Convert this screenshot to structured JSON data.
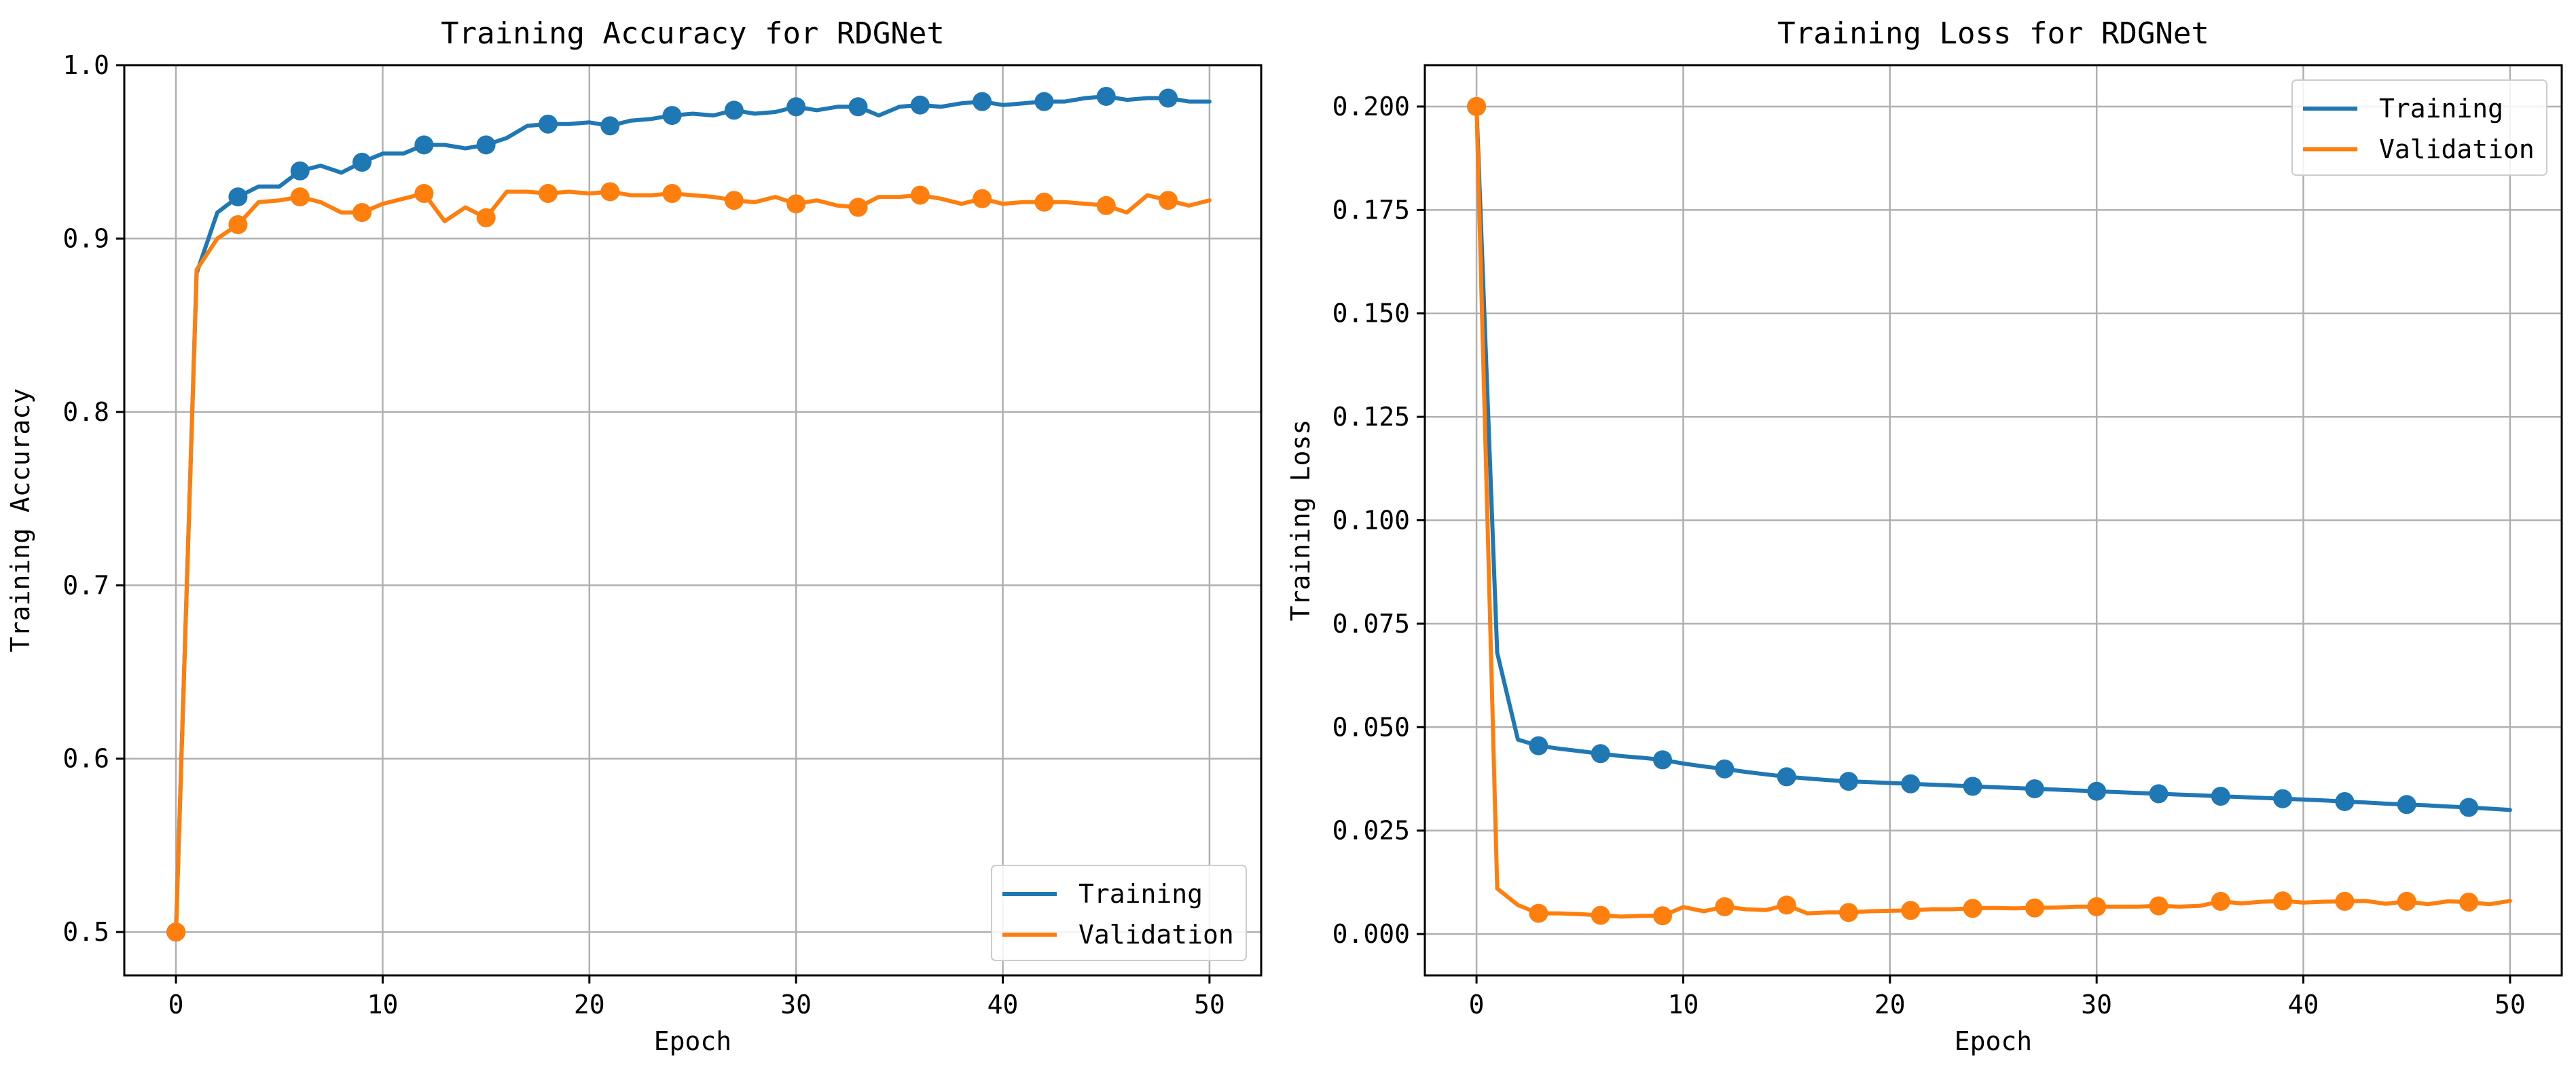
{
  "chart_data": [
    {
      "type": "line",
      "title": "Training Accuracy for RDGNet",
      "xlabel": "Epoch",
      "ylabel": "Training Accuracy",
      "xlim": [
        -2.5,
        52.5
      ],
      "ylim": [
        0.475,
        1.0
      ],
      "xticks": [
        0,
        10,
        20,
        30,
        40,
        50
      ],
      "xtick_labels": [
        "0",
        "10",
        "20",
        "30",
        "40",
        "50"
      ],
      "yticks": [
        0.5,
        0.6,
        0.7,
        0.8,
        0.9,
        1.0
      ],
      "ytick_labels": [
        "0.5",
        "0.6",
        "0.7",
        "0.8",
        "0.9",
        "1.0"
      ],
      "grid": true,
      "legend_position": "lower-right",
      "markevery": 3,
      "x": [
        0,
        1,
        2,
        3,
        4,
        5,
        6,
        7,
        8,
        9,
        10,
        11,
        12,
        13,
        14,
        15,
        16,
        17,
        18,
        19,
        20,
        21,
        22,
        23,
        24,
        25,
        26,
        27,
        28,
        29,
        30,
        31,
        32,
        33,
        34,
        35,
        36,
        37,
        38,
        39,
        40,
        41,
        42,
        43,
        44,
        45,
        46,
        47,
        48,
        49,
        50
      ],
      "series": [
        {
          "name": "Training",
          "color": "#1f77b4",
          "values": [
            0.5,
            0.88,
            0.915,
            0.924,
            0.93,
            0.93,
            0.939,
            0.942,
            0.938,
            0.944,
            0.949,
            0.949,
            0.954,
            0.954,
            0.952,
            0.954,
            0.958,
            0.965,
            0.966,
            0.966,
            0.967,
            0.965,
            0.968,
            0.969,
            0.971,
            0.972,
            0.971,
            0.974,
            0.972,
            0.973,
            0.976,
            0.974,
            0.976,
            0.976,
            0.971,
            0.976,
            0.977,
            0.976,
            0.978,
            0.979,
            0.977,
            0.978,
            0.979,
            0.979,
            0.981,
            0.982,
            0.98,
            0.981,
            0.981,
            0.979,
            0.979
          ]
        },
        {
          "name": "Validation",
          "color": "#ff7f0e",
          "values": [
            0.5,
            0.882,
            0.9,
            0.908,
            0.921,
            0.922,
            0.924,
            0.921,
            0.915,
            0.915,
            0.92,
            0.923,
            0.926,
            0.91,
            0.918,
            0.912,
            0.927,
            0.927,
            0.926,
            0.927,
            0.926,
            0.927,
            0.925,
            0.925,
            0.926,
            0.925,
            0.924,
            0.922,
            0.921,
            0.924,
            0.92,
            0.922,
            0.919,
            0.918,
            0.924,
            0.924,
            0.925,
            0.923,
            0.92,
            0.923,
            0.92,
            0.921,
            0.921,
            0.921,
            0.92,
            0.919,
            0.915,
            0.925,
            0.922,
            0.919,
            0.922
          ]
        }
      ]
    },
    {
      "type": "line",
      "title": "Training Loss for RDGNet",
      "xlabel": "Epoch",
      "ylabel": "Training Loss",
      "xlim": [
        -2.5,
        52.5
      ],
      "ylim": [
        -0.01,
        0.21
      ],
      "xticks": [
        0,
        10,
        20,
        30,
        40,
        50
      ],
      "xtick_labels": [
        "0",
        "10",
        "20",
        "30",
        "40",
        "50"
      ],
      "yticks": [
        0.0,
        0.025,
        0.05,
        0.075,
        0.1,
        0.125,
        0.15,
        0.175,
        0.2
      ],
      "ytick_labels": [
        "0.000",
        "0.025",
        "0.050",
        "0.075",
        "0.100",
        "0.125",
        "0.150",
        "0.175",
        "0.200"
      ],
      "grid": true,
      "legend_position": "top-right",
      "markevery": 3,
      "x": [
        0,
        1,
        2,
        3,
        4,
        5,
        6,
        7,
        8,
        9,
        10,
        11,
        12,
        13,
        14,
        15,
        16,
        17,
        18,
        19,
        20,
        21,
        22,
        23,
        24,
        25,
        26,
        27,
        28,
        29,
        30,
        31,
        32,
        33,
        34,
        35,
        36,
        37,
        38,
        39,
        40,
        41,
        42,
        43,
        44,
        45,
        46,
        47,
        48,
        49,
        50
      ],
      "series": [
        {
          "name": "Training",
          "color": "#1f77b4",
          "values": [
            0.2,
            0.068,
            0.047,
            0.0455,
            0.0448,
            0.0442,
            0.0436,
            0.043,
            0.0426,
            0.0421,
            0.0412,
            0.0405,
            0.0399,
            0.0392,
            0.0386,
            0.038,
            0.0376,
            0.0372,
            0.0369,
            0.0367,
            0.0365,
            0.0363,
            0.0361,
            0.0359,
            0.0357,
            0.0355,
            0.0353,
            0.0351,
            0.0349,
            0.0347,
            0.0345,
            0.0343,
            0.0341,
            0.0339,
            0.0337,
            0.0335,
            0.0333,
            0.0331,
            0.0329,
            0.0327,
            0.0325,
            0.0323,
            0.032,
            0.0318,
            0.0315,
            0.0313,
            0.0311,
            0.0308,
            0.0306,
            0.0303,
            0.03
          ]
        },
        {
          "name": "Validation",
          "color": "#ff7f0e",
          "values": [
            0.2,
            0.011,
            0.007,
            0.005,
            0.005,
            0.0048,
            0.0045,
            0.0042,
            0.0044,
            0.0044,
            0.0065,
            0.0055,
            0.0066,
            0.006,
            0.0058,
            0.007,
            0.005,
            0.0052,
            0.0052,
            0.0055,
            0.0056,
            0.0057,
            0.006,
            0.006,
            0.0062,
            0.0063,
            0.0062,
            0.0063,
            0.0064,
            0.0066,
            0.0066,
            0.0066,
            0.0066,
            0.0068,
            0.0066,
            0.0068,
            0.0079,
            0.0074,
            0.0078,
            0.008,
            0.0076,
            0.0078,
            0.0079,
            0.008,
            0.0073,
            0.0079,
            0.0072,
            0.0079,
            0.0077,
            0.0072,
            0.008
          ]
        }
      ]
    }
  ]
}
